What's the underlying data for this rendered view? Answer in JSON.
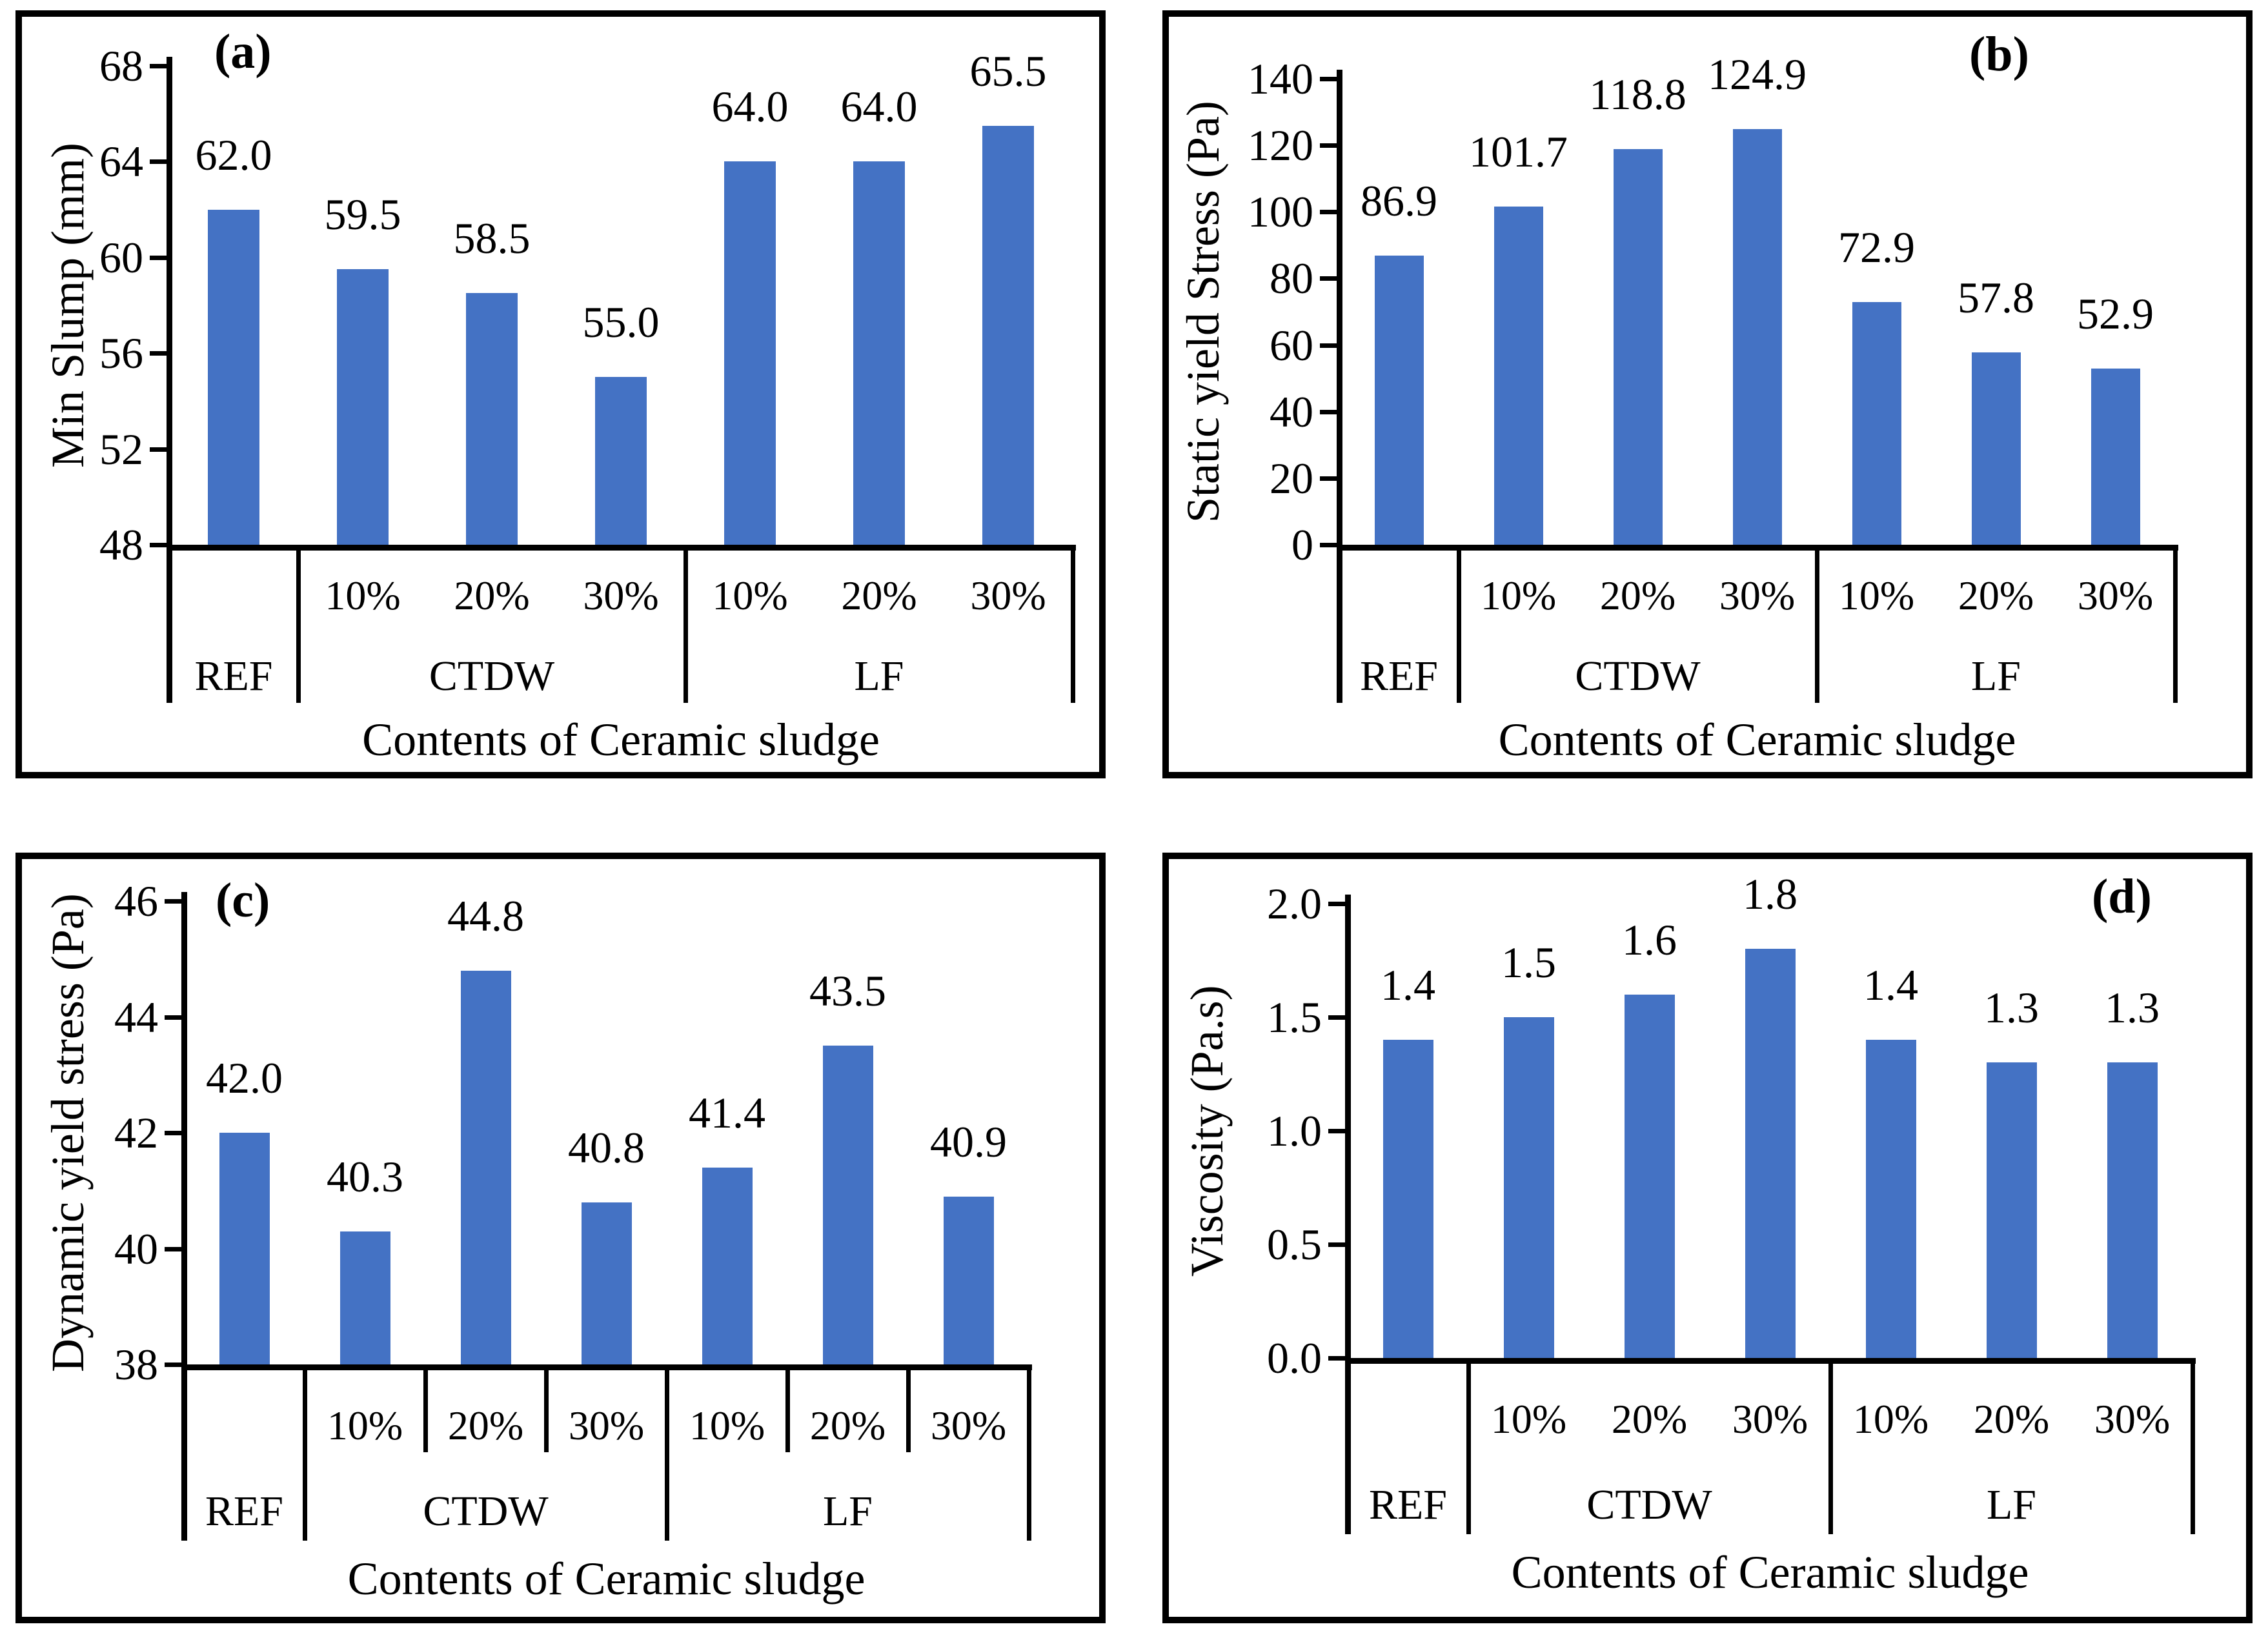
{
  "figure": {
    "bar_color": "#4472C4",
    "axis_color": "#000000",
    "x_axis_title": "Contents of Ceramic sludge",
    "group_names": [
      "REF",
      "CTDW",
      "LF"
    ],
    "subcategory_labels": [
      "10%",
      "20%",
      "30%"
    ]
  },
  "chart_data": [
    {
      "id": "a",
      "panel_label": "(a)",
      "type": "bar",
      "title": "",
      "ylabel": "Min Slump (mm)",
      "xlabel": "Contents of Ceramic sludge",
      "ymin": 48,
      "ymax": 68,
      "yticks": [
        "48",
        "52",
        "56",
        "60",
        "64",
        "68"
      ],
      "categories": [
        "REF",
        "CTDW 10%",
        "CTDW 20%",
        "CTDW 30%",
        "LF 10%",
        "LF 20%",
        "LF 30%"
      ],
      "pct_labels": [
        "",
        "10%",
        "20%",
        "30%",
        "10%",
        "20%",
        "30%"
      ],
      "groups": [
        {
          "label": "REF",
          "span": 1
        },
        {
          "label": "CTDW",
          "span": 3
        },
        {
          "label": "LF",
          "span": 3
        }
      ],
      "values": [
        62.0,
        59.5,
        58.5,
        55.0,
        64.0,
        64.0,
        65.5
      ],
      "value_labels": [
        "62.0",
        "59.5",
        "58.5",
        "55.0",
        "64.0",
        "64.0",
        "65.5"
      ]
    },
    {
      "id": "b",
      "panel_label": "(b)",
      "type": "bar",
      "title": "",
      "ylabel": "Static yield Stress (Pa)",
      "xlabel": "Contents of Ceramic sludge",
      "ymin": 0,
      "ymax": 140,
      "yticks": [
        "0",
        "20",
        "40",
        "60",
        "80",
        "100",
        "120",
        "140"
      ],
      "categories": [
        "REF",
        "CTDW 10%",
        "CTDW 20%",
        "CTDW 30%",
        "LF 10%",
        "LF 20%",
        "LF 30%"
      ],
      "pct_labels": [
        "",
        "10%",
        "20%",
        "30%",
        "10%",
        "20%",
        "30%"
      ],
      "groups": [
        {
          "label": "REF",
          "span": 1
        },
        {
          "label": "CTDW",
          "span": 3
        },
        {
          "label": "LF",
          "span": 3
        }
      ],
      "values": [
        86.9,
        101.7,
        118.8,
        124.9,
        72.9,
        57.8,
        52.9
      ],
      "value_labels": [
        "86.9",
        "101.7",
        "118.8",
        "124.9",
        "72.9",
        "57.8",
        "52.9"
      ]
    },
    {
      "id": "c",
      "panel_label": "(c)",
      "type": "bar",
      "title": "",
      "ylabel": "Dynamic yield stress (Pa)",
      "xlabel": "Contents of Ceramic sludge",
      "ymin": 38,
      "ymax": 46,
      "yticks": [
        "38",
        "40",
        "42",
        "44",
        "46"
      ],
      "categories": [
        "REF",
        "CTDW 10%",
        "CTDW 20%",
        "CTDW 30%",
        "LF 10%",
        "LF 20%",
        "LF 30%"
      ],
      "pct_labels": [
        "",
        "10%",
        "20%",
        "30%",
        "10%",
        "20%",
        "30%"
      ],
      "groups": [
        {
          "label": "REF",
          "span": 1
        },
        {
          "label": "CTDW",
          "span": 3
        },
        {
          "label": "LF",
          "span": 3
        }
      ],
      "values": [
        42.0,
        40.3,
        44.8,
        40.8,
        41.4,
        43.5,
        40.9
      ],
      "value_labels": [
        "42.0",
        "40.3",
        "44.8",
        "40.8",
        "41.4",
        "43.5",
        "40.9"
      ]
    },
    {
      "id": "d",
      "panel_label": "(d)",
      "type": "bar",
      "title": "",
      "ylabel": "Viscosity (Pa.s)",
      "xlabel": "Contents of Ceramic sludge",
      "ymin": 0.0,
      "ymax": 2.0,
      "yticks": [
        "0.0",
        "0.5",
        "1.0",
        "1.5",
        "2.0"
      ],
      "categories": [
        "REF",
        "CTDW 10%",
        "CTDW 20%",
        "CTDW 30%",
        "LF 10%",
        "LF 20%",
        "LF 30%"
      ],
      "pct_labels": [
        "",
        "10%",
        "20%",
        "30%",
        "10%",
        "20%",
        "30%"
      ],
      "groups": [
        {
          "label": "REF",
          "span": 1
        },
        {
          "label": "CTDW",
          "span": 3
        },
        {
          "label": "LF",
          "span": 3
        }
      ],
      "values": [
        1.4,
        1.5,
        1.6,
        1.8,
        1.4,
        1.3,
        1.3
      ],
      "value_labels": [
        "1.4",
        "1.5",
        "1.6",
        "1.8",
        "1.4",
        "1.3",
        "1.3"
      ]
    }
  ]
}
